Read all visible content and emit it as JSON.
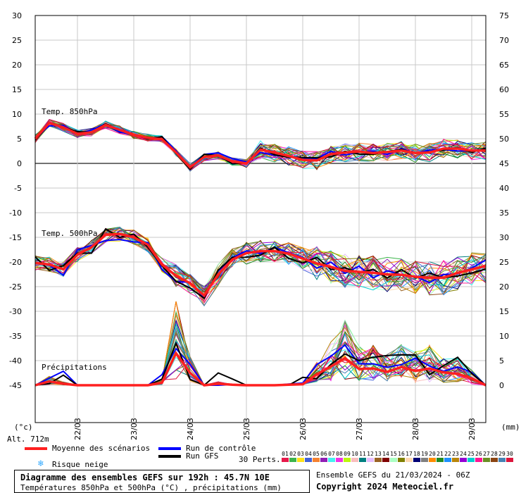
{
  "header": {},
  "axes": {
    "left_unit": "(°c)",
    "right_unit": "(mm)",
    "altitude": "Alt. 712m",
    "left_ticks": [
      "30",
      "25",
      "20",
      "15",
      "10",
      "5",
      "0",
      "-5",
      "-10",
      "-15",
      "-20",
      "-25",
      "-30",
      "-35",
      "-40",
      "-45"
    ],
    "right_ticks": [
      "75",
      "70",
      "65",
      "60",
      "55",
      "50",
      "45",
      "40",
      "35",
      "30",
      "25",
      "20",
      "15",
      "10",
      "5",
      "0"
    ],
    "date_ticks": [
      "22/03",
      "23/03",
      "24/03",
      "25/03",
      "26/03",
      "27/03",
      "28/03",
      "29/03"
    ]
  },
  "panels": {
    "t850": "Temp. 850hPa",
    "t500": "Temp. 500hPa",
    "precip": "Précipitations"
  },
  "legend": {
    "mean": "Moyenne des scénarios",
    "control": "Run de contrôle",
    "gfs": "Run GFS",
    "snow": "Risque neige",
    "perts": "30 Perts.",
    "pert_numbers": [
      "01",
      "02",
      "03",
      "04",
      "05",
      "06",
      "07",
      "08",
      "09",
      "10",
      "11",
      "12",
      "13",
      "14",
      "15",
      "16",
      "17",
      "18",
      "19",
      "20",
      "21",
      "22",
      "23",
      "24",
      "25",
      "26",
      "27",
      "28",
      "29",
      "30"
    ],
    "colors": {
      "mean": "#ff2020",
      "control": "#0000ff",
      "gfs": "#000000",
      "snow": "#33aaff"
    }
  },
  "title_box": {
    "line1": "Diagramme des ensembles GEFS sur 192h : 45.7N 10E",
    "line2": "Températures 850hPa et 500hPa (°C) , précipitations (mm)"
  },
  "credits": {
    "run": "Ensemble GEFS du 21/03/2024 - 06Z",
    "copyright": "Copyright 2024 Meteociel.fr"
  },
  "chart_data": {
    "type": "line",
    "x_unit": "hours (0-192)",
    "x": [
      0,
      6,
      12,
      18,
      24,
      30,
      36,
      42,
      48,
      54,
      60,
      66,
      72,
      78,
      84,
      90,
      96,
      102,
      108,
      114,
      120,
      126,
      132,
      138,
      144,
      150,
      156,
      162,
      168,
      174,
      180,
      186,
      192
    ],
    "ylim_left": [
      -45,
      30
    ],
    "ylim_right": [
      0,
      75
    ],
    "series": [
      {
        "name": "Temp. 850hPa",
        "values": [
          5,
          8.2,
          7.3,
          6,
          6.3,
          7.8,
          6.8,
          5.8,
          5.2,
          4.9,
          2.2,
          -0.8,
          1.3,
          1.6,
          0.4,
          0,
          2.8,
          2.2,
          1.5,
          0.7,
          0.6,
          1.9,
          2.2,
          2.4,
          2.1,
          2.3,
          2.6,
          2.1,
          2.2,
          3,
          3,
          2.6,
          2.6
        ]
      },
      {
        "name": "Temp. 500hPa",
        "values": [
          -20.2,
          -20.5,
          -21.5,
          -18.5,
          -17,
          -14.5,
          -14.3,
          -15,
          -16.5,
          -20.5,
          -22.8,
          -24.3,
          -26.8,
          -22.5,
          -19.5,
          -18.2,
          -17.8,
          -17.8,
          -18.3,
          -19.3,
          -20.3,
          -21,
          -21.8,
          -22,
          -22.2,
          -22.5,
          -22.6,
          -23,
          -23.2,
          -23.2,
          -22.2,
          -21.5,
          -20.8
        ]
      },
      {
        "name": "Précipitations",
        "values": [
          0,
          0.8,
          0.3,
          0,
          0,
          0,
          0,
          0,
          0,
          0.5,
          6.5,
          2.5,
          0,
          0.3,
          0.1,
          0,
          0,
          0,
          0.1,
          0.2,
          2.2,
          3.8,
          5.5,
          3.3,
          3.4,
          2.7,
          3.7,
          2.9,
          3.4,
          2.6,
          2.3,
          1.4,
          0
        ]
      }
    ]
  }
}
